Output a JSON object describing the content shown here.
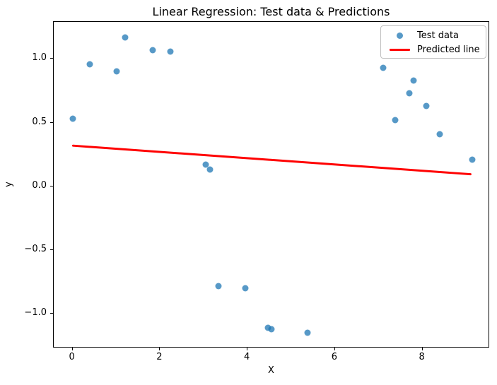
{
  "chart_data": {
    "type": "scatter",
    "title": "Linear Regression: Test data & Predictions",
    "xlabel": "X",
    "ylabel": "y",
    "xlim": [
      -0.43,
      9.54
    ],
    "ylim": [
      -1.27,
      1.29
    ],
    "xticks": [
      0,
      2,
      4,
      6,
      8
    ],
    "xtick_labels": [
      "0",
      "2",
      "4",
      "6",
      "8"
    ],
    "yticks": [
      1.0,
      0.5,
      0.0,
      -0.5,
      -1.0
    ],
    "ytick_labels": [
      "1.0",
      "0.5",
      "0.0",
      "−0.5",
      "−1.0"
    ],
    "grid": false,
    "legend_position": "upper right",
    "series": [
      {
        "name": "Test data",
        "type": "scatter",
        "marker": "circle",
        "color": "#1f77b4",
        "alpha": 0.75,
        "points": [
          [
            0.01,
            0.53
          ],
          [
            0.4,
            0.96
          ],
          [
            1.01,
            0.9
          ],
          [
            1.21,
            1.17
          ],
          [
            1.83,
            1.07
          ],
          [
            2.23,
            1.06
          ],
          [
            3.04,
            0.17
          ],
          [
            3.14,
            0.13
          ],
          [
            3.34,
            -0.78
          ],
          [
            3.95,
            -0.8
          ],
          [
            4.46,
            -1.11
          ],
          [
            4.55,
            -1.12
          ],
          [
            5.37,
            -1.15
          ],
          [
            7.1,
            0.93
          ],
          [
            7.38,
            0.52
          ],
          [
            7.69,
            0.73
          ],
          [
            7.79,
            0.83
          ],
          [
            8.09,
            0.63
          ],
          [
            8.4,
            0.41
          ],
          [
            9.13,
            0.21
          ]
        ]
      },
      {
        "name": "Predicted line",
        "type": "line",
        "color": "#ff0000",
        "linewidth": 3,
        "points": [
          [
            0.01,
            0.315
          ],
          [
            9.13,
            0.09
          ]
        ]
      }
    ]
  }
}
